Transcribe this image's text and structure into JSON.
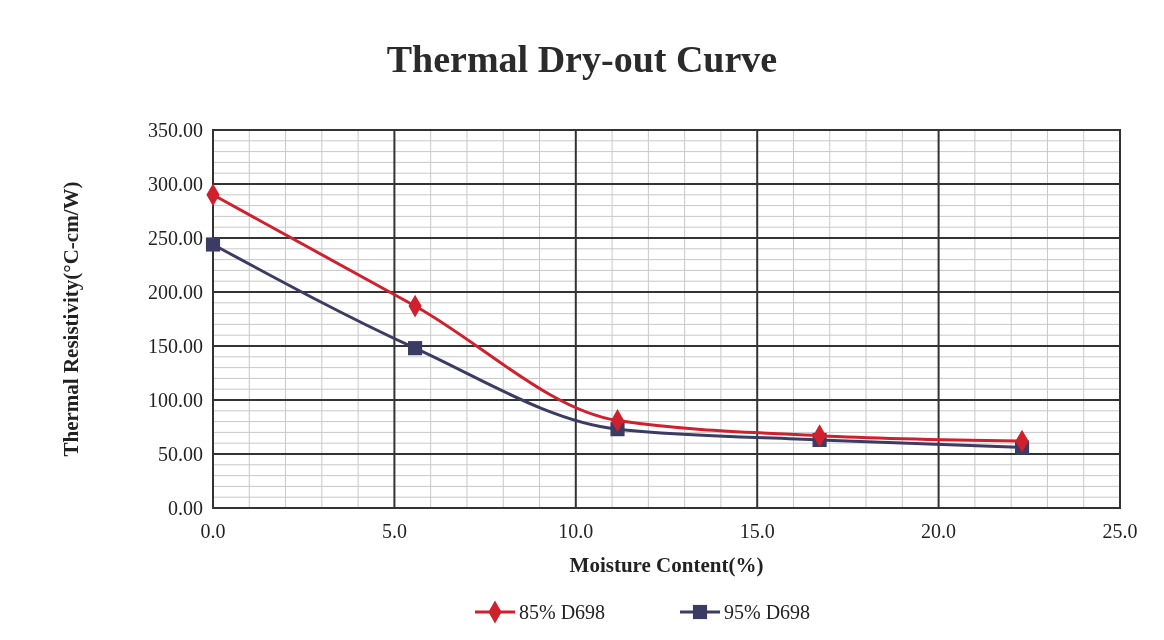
{
  "chart_data": {
    "type": "line",
    "title": "Thermal Dry-out Curve",
    "xlabel": "Moisture Content(%)",
    "ylabel": "Thermal Resistivity(°C-cm/W)",
    "x": [
      0,
      5.57,
      11.15,
      16.72,
      22.3
    ],
    "series": [
      {
        "name": "85% D698",
        "color": "#d0202e",
        "marker": "diamond",
        "values": [
          290,
          187,
          81,
          67,
          62
        ]
      },
      {
        "name": "95% D698",
        "color": "#3b3b63",
        "marker": "square",
        "values": [
          244,
          148,
          73,
          63,
          56
        ]
      }
    ],
    "xlim": [
      0,
      25
    ],
    "xticks": [
      {
        "value": 0,
        "label": "0.0"
      },
      {
        "value": 5,
        "label": "5.0"
      },
      {
        "value": 10,
        "label": "10.0"
      },
      {
        "value": 15,
        "label": "15.0"
      },
      {
        "value": 20,
        "label": "20.0"
      },
      {
        "value": 25,
        "label": "25.0"
      }
    ],
    "ylim": [
      0,
      350
    ],
    "yticks": [
      {
        "value": 0,
        "label": "0.00"
      },
      {
        "value": 50,
        "label": "50.00"
      },
      {
        "value": 100,
        "label": "100.00"
      },
      {
        "value": 150,
        "label": "150.00"
      },
      {
        "value": 200,
        "label": "200.00"
      },
      {
        "value": 250,
        "label": "250.00"
      },
      {
        "value": 300,
        "label": "300.00"
      },
      {
        "value": 350,
        "label": "350.00"
      }
    ],
    "grid": true,
    "legend": "bottom",
    "line_style": "solid"
  }
}
